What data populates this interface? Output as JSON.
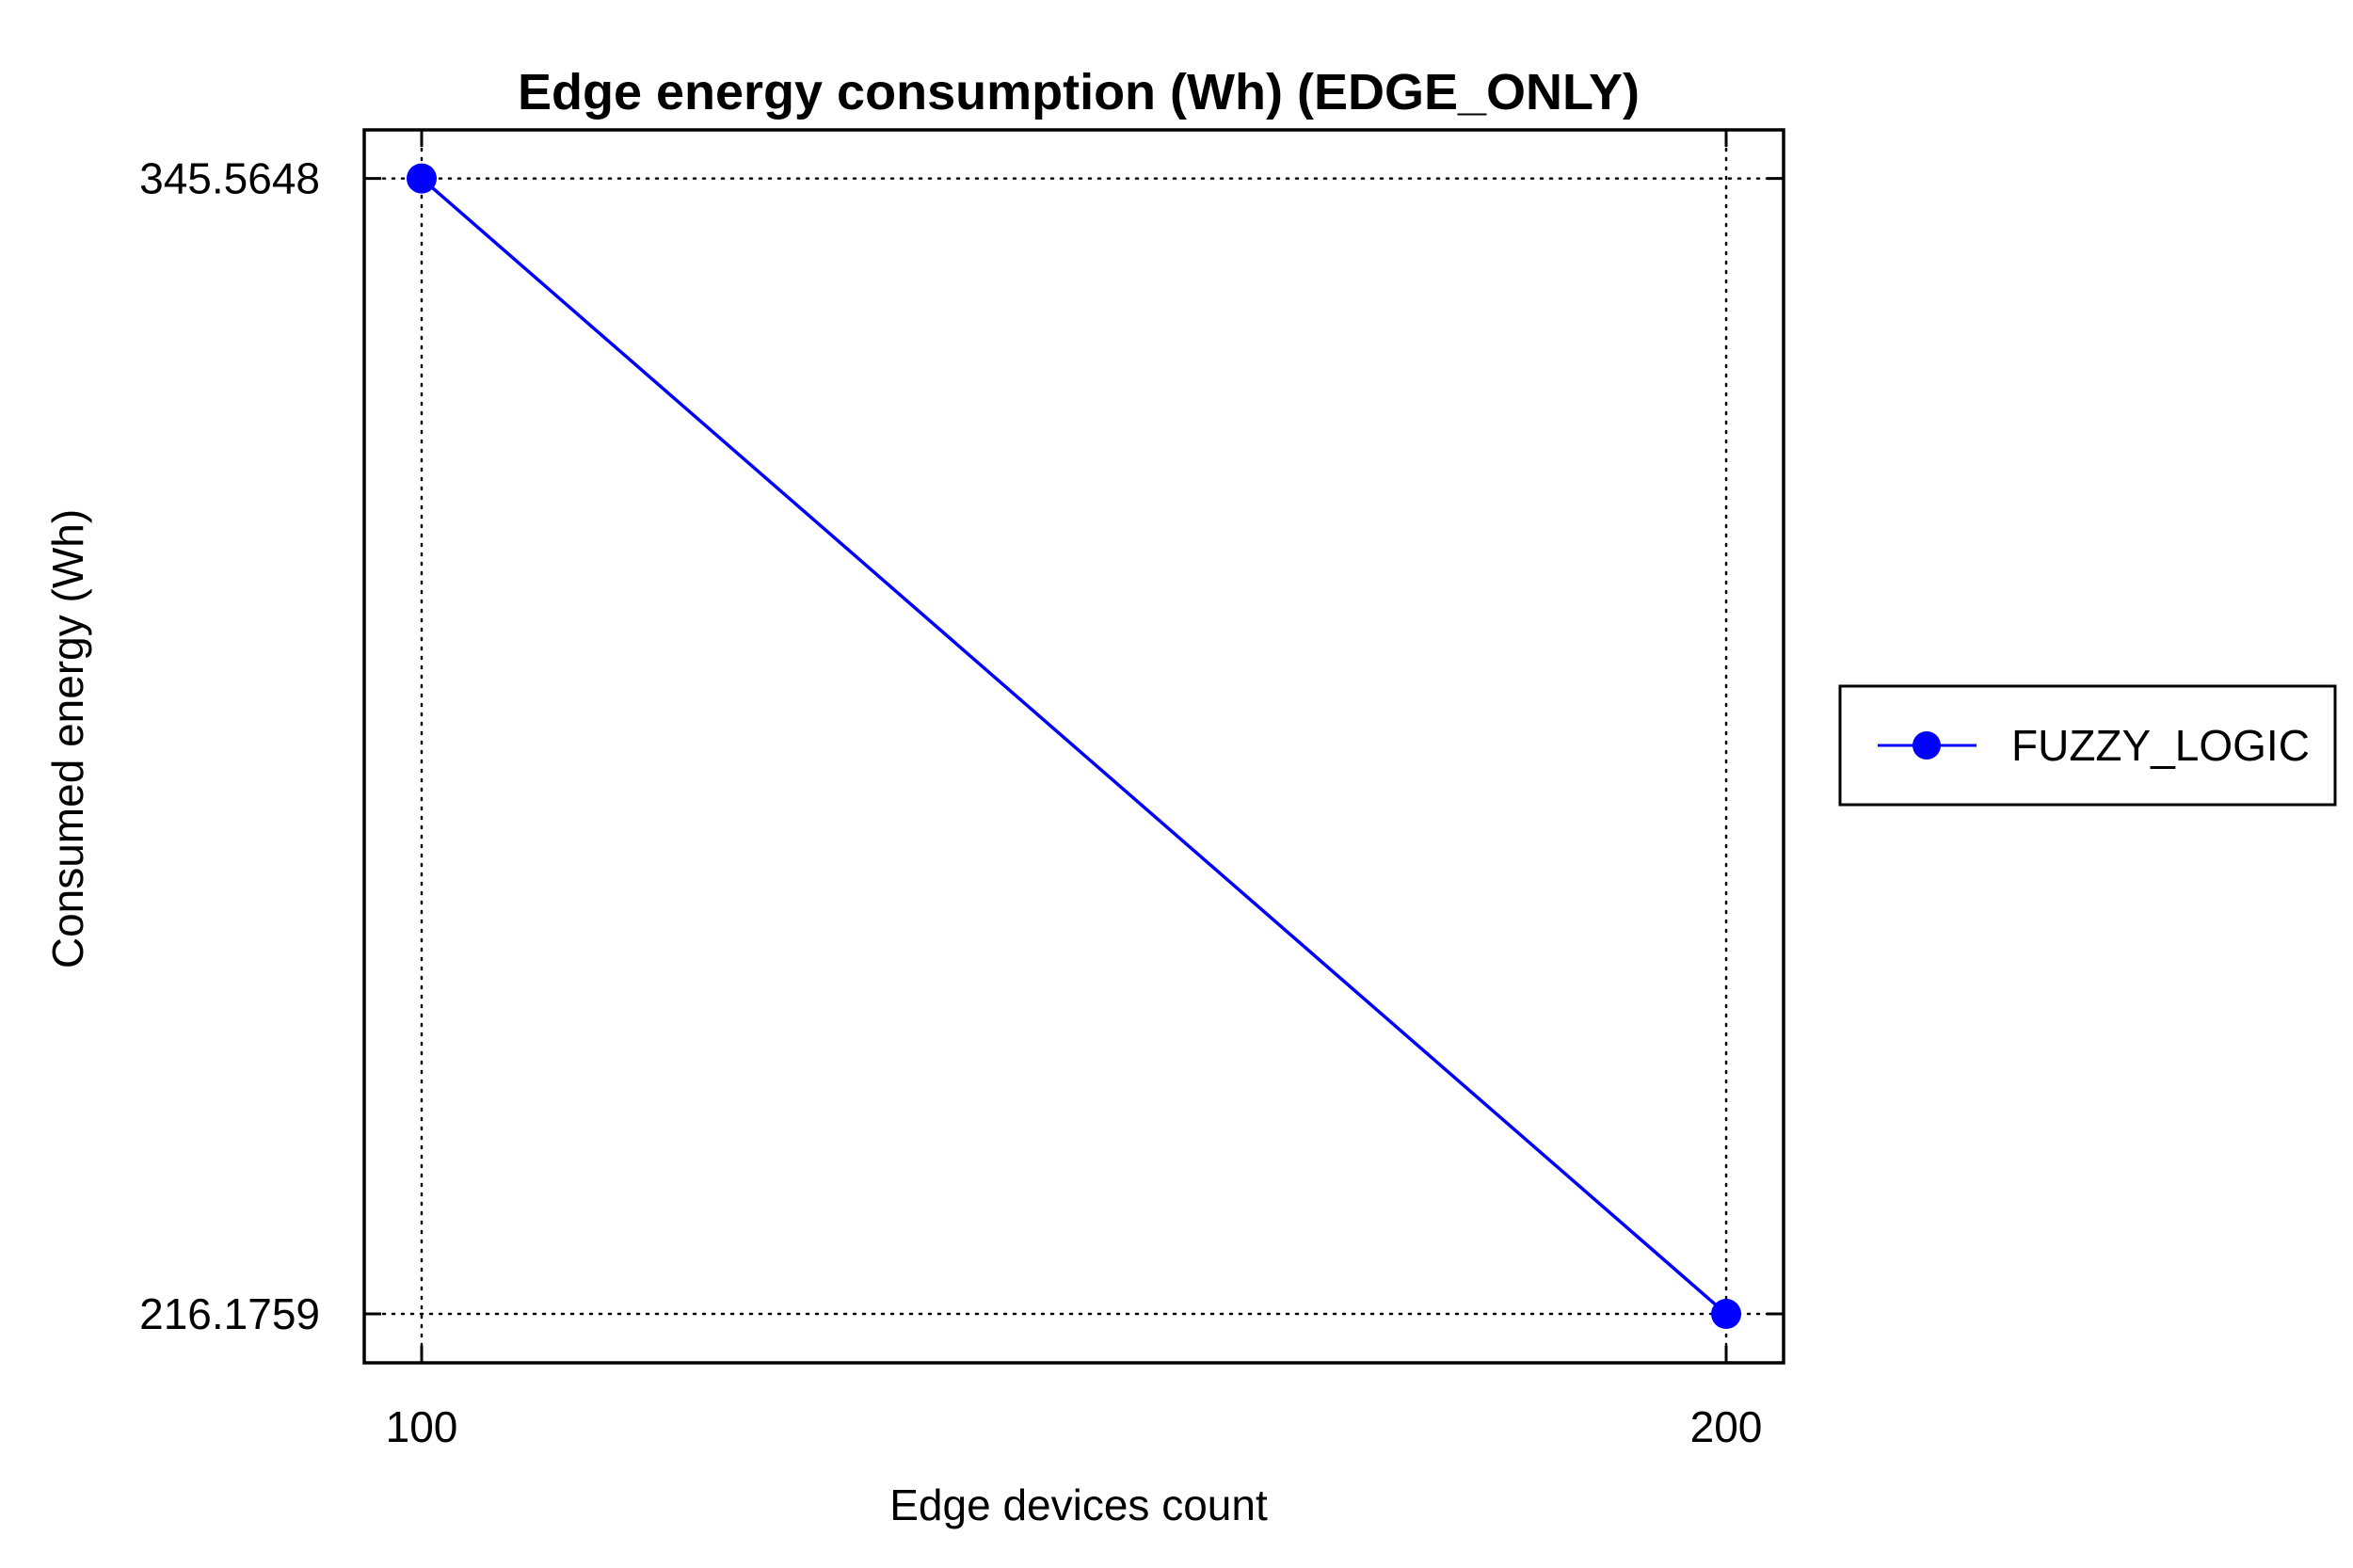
{
  "chart_data": {
    "type": "line",
    "title": "Edge energy consumption (Wh) (EDGE_ONLY)",
    "xlabel": "Edge devices count",
    "ylabel": "Consumed energy (Wh)",
    "x": [
      100,
      200
    ],
    "x_ticks": [
      "100",
      "200"
    ],
    "y_ticks": [
      "345.5648",
      "216.1759"
    ],
    "xlim": [
      95.6,
      204.4
    ],
    "ylim": [
      210.6,
      351.1
    ],
    "grid": true,
    "legend_position": "right",
    "series": [
      {
        "name": "FUZZY_LOGIC",
        "values": [
          345.5648,
          216.1759
        ],
        "color": "#0000ff",
        "marker": "circle"
      }
    ]
  }
}
